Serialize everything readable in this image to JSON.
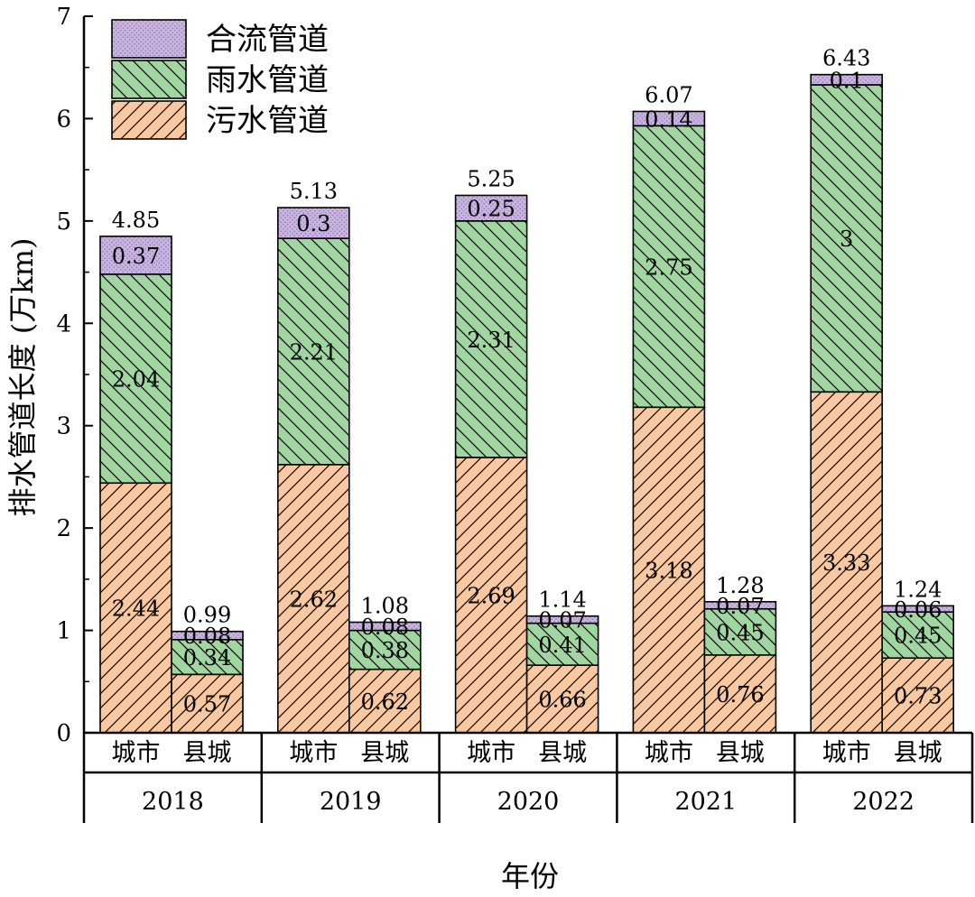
{
  "chart_data": {
    "type": "bar",
    "stacked": true,
    "ylabel": "排水管道长度 (万km)",
    "xlabel": "年份",
    "ylim": [
      0,
      7
    ],
    "yticks": [
      0,
      1,
      2,
      3,
      4,
      5,
      6,
      7
    ],
    "legend_position": "top-left",
    "series": [
      {
        "key": "sewage",
        "name": "污水管道",
        "color": "#F8C8A0",
        "pattern": "forward-diagonal"
      },
      {
        "key": "rain",
        "name": "雨水管道",
        "color": "#9FD89F",
        "pattern": "back-diagonal"
      },
      {
        "key": "combined",
        "name": "合流管道",
        "color": "#C9B3E0",
        "pattern": "dots"
      }
    ],
    "legend_order": [
      "combined",
      "rain",
      "sewage"
    ],
    "groups": [
      {
        "year": "2018",
        "bars": [
          {
            "category": "城市",
            "sewage": 2.44,
            "rain": 2.04,
            "combined": 0.37,
            "total": 4.85
          },
          {
            "category": "县城",
            "sewage": 0.57,
            "rain": 0.34,
            "combined": 0.08,
            "total": 0.99
          }
        ]
      },
      {
        "year": "2019",
        "bars": [
          {
            "category": "城市",
            "sewage": 2.62,
            "rain": 2.21,
            "combined": 0.3,
            "total": 5.13
          },
          {
            "category": "县城",
            "sewage": 0.62,
            "rain": 0.38,
            "combined": 0.08,
            "total": 1.08
          }
        ]
      },
      {
        "year": "2020",
        "bars": [
          {
            "category": "城市",
            "sewage": 2.69,
            "rain": 2.31,
            "combined": 0.25,
            "total": 5.25
          },
          {
            "category": "县城",
            "sewage": 0.66,
            "rain": 0.41,
            "combined": 0.07,
            "total": 1.14
          }
        ]
      },
      {
        "year": "2021",
        "bars": [
          {
            "category": "城市",
            "sewage": 3.18,
            "rain": 2.75,
            "combined": 0.14,
            "total": 6.07
          },
          {
            "category": "县城",
            "sewage": 0.76,
            "rain": 0.45,
            "combined": 0.07,
            "total": 1.28
          }
        ]
      },
      {
        "year": "2022",
        "bars": [
          {
            "category": "城市",
            "sewage": 3.33,
            "rain": 3,
            "combined": 0.1,
            "total": 6.43
          },
          {
            "category": "县城",
            "sewage": 0.73,
            "rain": 0.45,
            "combined": 0.06,
            "total": 1.24
          }
        ]
      }
    ]
  }
}
